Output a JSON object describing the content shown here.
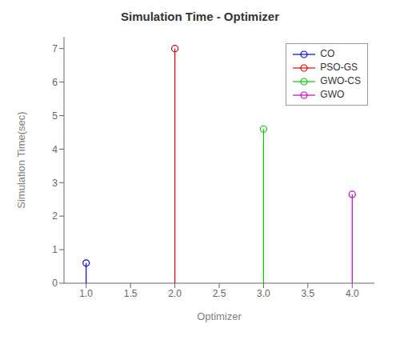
{
  "chart_data": {
    "type": "stem",
    "title": "Simulation Time - Optimizer",
    "x_label": "Optimizer",
    "y_label": "Simulation Time(sec)",
    "xlim": [
      0.75,
      4.25
    ],
    "ylim": [
      0,
      7.35
    ],
    "xticks": [
      {
        "value": 1,
        "label": "1.0"
      },
      {
        "value": 1.5,
        "label": "1.5"
      },
      {
        "value": 2,
        "label": "2.0"
      },
      {
        "value": 2.5,
        "label": "2.5"
      },
      {
        "value": 3,
        "label": "3.0"
      },
      {
        "value": 3.5,
        "label": "3.5"
      },
      {
        "value": 4,
        "label": "4.0"
      }
    ],
    "yticks": [
      0,
      1,
      2,
      3,
      4,
      5,
      6,
      7
    ],
    "marker": "circle",
    "legend": "upper right",
    "grid": false,
    "series": [
      {
        "name": "CO",
        "color": "#0000EE",
        "x": [
          1
        ],
        "values": [
          0.6
        ],
        "base": 0
      },
      {
        "name": "PSO-GS",
        "color": "#EE0000",
        "x": [
          2
        ],
        "values": [
          7.0
        ],
        "base": 0
      },
      {
        "name": "GWO-CS",
        "color": "#00CC00",
        "x": [
          3
        ],
        "values": [
          4.6
        ],
        "base": 0
      },
      {
        "name": "GWO",
        "color": "#CC00CC",
        "x": [
          4
        ],
        "values": [
          2.65
        ],
        "base": 0
      }
    ]
  }
}
